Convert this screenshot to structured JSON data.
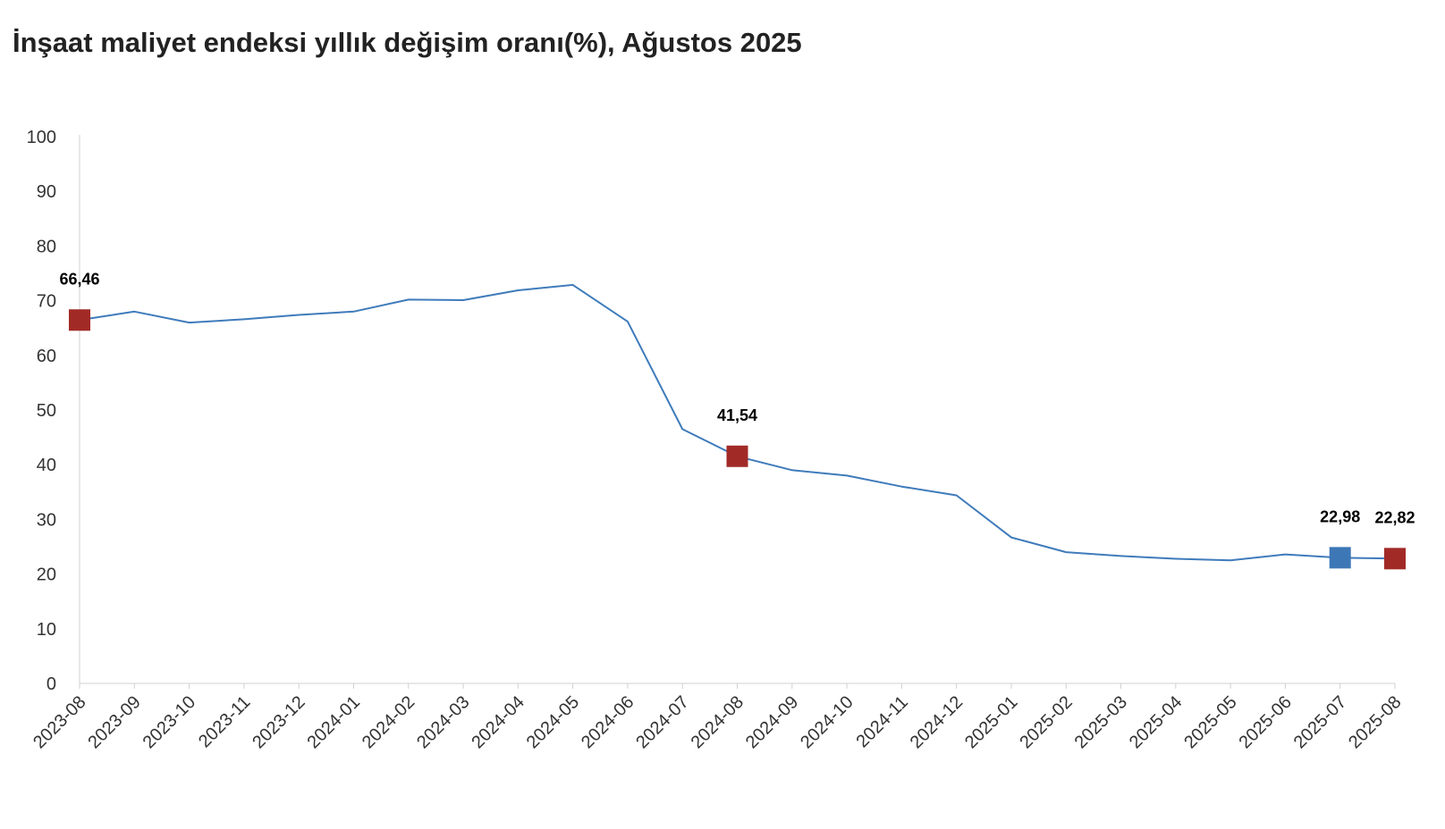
{
  "chart_data": {
    "type": "line",
    "title": "İnşaat maliyet endeksi yıllık değişim oranı(%), Ağustos 2025",
    "xlabel": "",
    "ylabel": "",
    "ylim": [
      0,
      100
    ],
    "yticks": [
      0,
      10,
      20,
      30,
      40,
      50,
      60,
      70,
      80,
      90,
      100
    ],
    "grid": false,
    "legend": "none",
    "categories": [
      "2023-08",
      "2023-09",
      "2023-10",
      "2023-11",
      "2023-12",
      "2024-01",
      "2024-02",
      "2024-03",
      "2024-04",
      "2024-05",
      "2024-06",
      "2024-07",
      "2024-08",
      "2024-09",
      "2024-10",
      "2024-11",
      "2024-12",
      "2025-01",
      "2025-02",
      "2025-03",
      "2025-04",
      "2025-05",
      "2025-06",
      "2025-07",
      "2025-08"
    ],
    "series": [
      {
        "values": [
          66.46,
          68.0,
          66.0,
          66.6,
          67.4,
          68.0,
          70.2,
          70.1,
          71.9,
          72.9,
          66.2,
          46.5,
          41.54,
          39.0,
          38.0,
          36.0,
          34.4,
          26.7,
          24.0,
          23.3,
          22.8,
          22.5,
          23.6,
          22.98,
          22.82
        ],
        "color": "#3f7bbb"
      }
    ],
    "highlights": [
      {
        "index": 0,
        "label": "66,46",
        "color": "#a12a26"
      },
      {
        "index": 12,
        "label": "41,54",
        "color": "#a12a26"
      },
      {
        "index": 23,
        "label": "22,98",
        "color": "#3d77b6"
      },
      {
        "index": 24,
        "label": "22,82",
        "color": "#a12a26"
      }
    ]
  }
}
